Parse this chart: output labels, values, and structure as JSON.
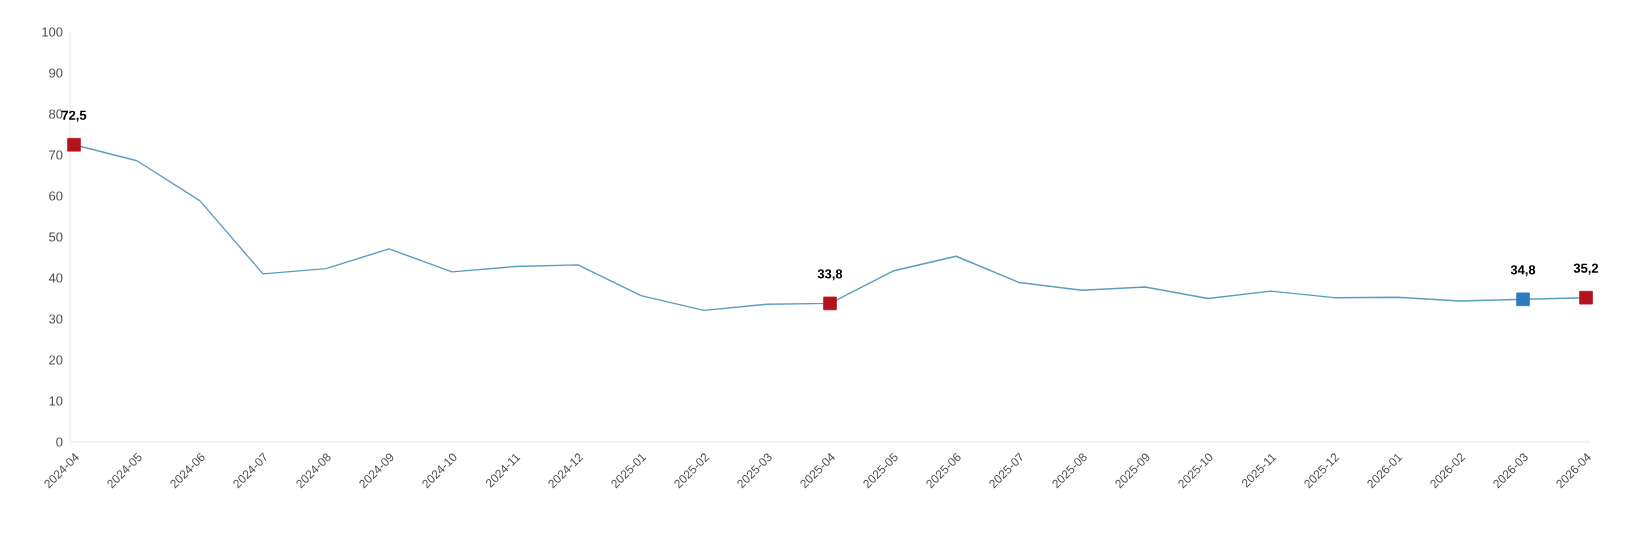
{
  "chart_data": {
    "type": "line",
    "categories": [
      "2024-04",
      "2024-05",
      "2024-06",
      "2024-07",
      "2024-08",
      "2024-09",
      "2024-10",
      "2024-11",
      "2024-12",
      "2025-01",
      "2025-02",
      "2025-03",
      "2025-04",
      "2025-05",
      "2025-06",
      "2025-07",
      "2025-08",
      "2025-09",
      "2025-10",
      "2025-11",
      "2025-12",
      "2026-01",
      "2026-02",
      "2026-03",
      "2026-04"
    ],
    "series": [
      {
        "color": "#5b9dbf",
        "marker": "none",
        "values": [
          72.5,
          68.6,
          58.8,
          41.0,
          42.3,
          47.1,
          41.5,
          42.8,
          43.2,
          35.7,
          32.1,
          33.6,
          33.8,
          41.7,
          45.3,
          38.9,
          37.0,
          37.8,
          35.0,
          36.8,
          35.2,
          35.3,
          34.4,
          34.8,
          35.2
        ]
      },
      {
        "type": "scatter",
        "color": "#b3141b",
        "marker": "square",
        "values": [
          72.5,
          null,
          null,
          null,
          null,
          null,
          null,
          null,
          null,
          null,
          null,
          null,
          33.8,
          null,
          null,
          null,
          null,
          null,
          null,
          null,
          null,
          null,
          null,
          null,
          35.2
        ],
        "value_labels": [
          "72,5",
          null,
          null,
          null,
          null,
          null,
          null,
          null,
          null,
          null,
          null,
          null,
          "33,8",
          null,
          null,
          null,
          null,
          null,
          null,
          null,
          null,
          null,
          null,
          null,
          "35,2"
        ]
      },
      {
        "type": "scatter",
        "color": "#2b7bc0",
        "marker": "square",
        "values": [
          null,
          null,
          null,
          null,
          null,
          null,
          null,
          null,
          null,
          null,
          null,
          null,
          null,
          null,
          null,
          null,
          null,
          null,
          null,
          null,
          null,
          null,
          null,
          34.8,
          null
        ],
        "value_labels": [
          null,
          null,
          null,
          null,
          null,
          null,
          null,
          null,
          null,
          null,
          null,
          null,
          null,
          null,
          null,
          null,
          null,
          null,
          null,
          null,
          null,
          null,
          null,
          "34,8",
          null
        ]
      }
    ],
    "ylim": [
      0,
      100
    ],
    "yticks": [
      0,
      10,
      20,
      30,
      40,
      50,
      60,
      70,
      80,
      90,
      100
    ],
    "grid": false
  }
}
